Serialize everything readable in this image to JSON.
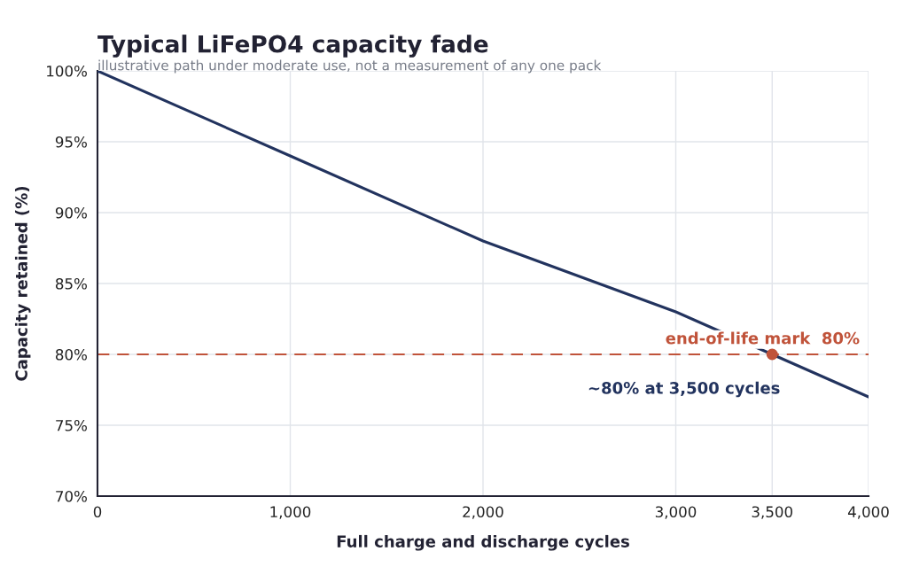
{
  "chart_data": {
    "type": "line",
    "title": "Typical LiFePO4 capacity fade",
    "subtitle": "illustrative path under moderate use, not a measurement of any one pack",
    "xlabel": "Full charge and discharge cycles",
    "ylabel": "Capacity retained (%)",
    "series": [
      {
        "color": "#22335e",
        "x": [
          0,
          1000,
          2000,
          3000,
          3500,
          4000
        ],
        "values": [
          100,
          94,
          88,
          83,
          80,
          77
        ]
      },
      {
        "type": "scatter",
        "marker": "circle",
        "color": "#c0533a",
        "x": [
          3500
        ],
        "values": [
          80
        ]
      }
    ],
    "xlim": [
      0,
      4000
    ],
    "ylim": [
      70,
      100
    ],
    "xticks": [
      0,
      {
        "value": 1000,
        "label": "1,000"
      },
      {
        "value": 2000,
        "label": "2,000"
      },
      {
        "value": 3000,
        "label": "3,000"
      },
      {
        "value": 3500,
        "label": "3,500"
      },
      {
        "value": 4000,
        "label": "4,000"
      }
    ],
    "yticks": [
      {
        "value": 70,
        "label": "70%"
      },
      {
        "value": 75,
        "label": "75%"
      },
      {
        "value": 80,
        "label": "80%"
      },
      {
        "value": 85,
        "label": "85%"
      },
      {
        "value": 90,
        "label": "90%"
      },
      {
        "value": 95,
        "label": "95%"
      },
      {
        "value": 100,
        "label": "100%"
      }
    ],
    "ref_lines": [
      {
        "axis": "y",
        "value": 80,
        "label": "end-of-life mark  80%",
        "color": "#c0533a",
        "line_style": "dashed"
      }
    ],
    "annotations": [
      {
        "text": "~80% at 3,500 cycles",
        "x": 3500,
        "y": 80
      }
    ],
    "grid": true
  }
}
